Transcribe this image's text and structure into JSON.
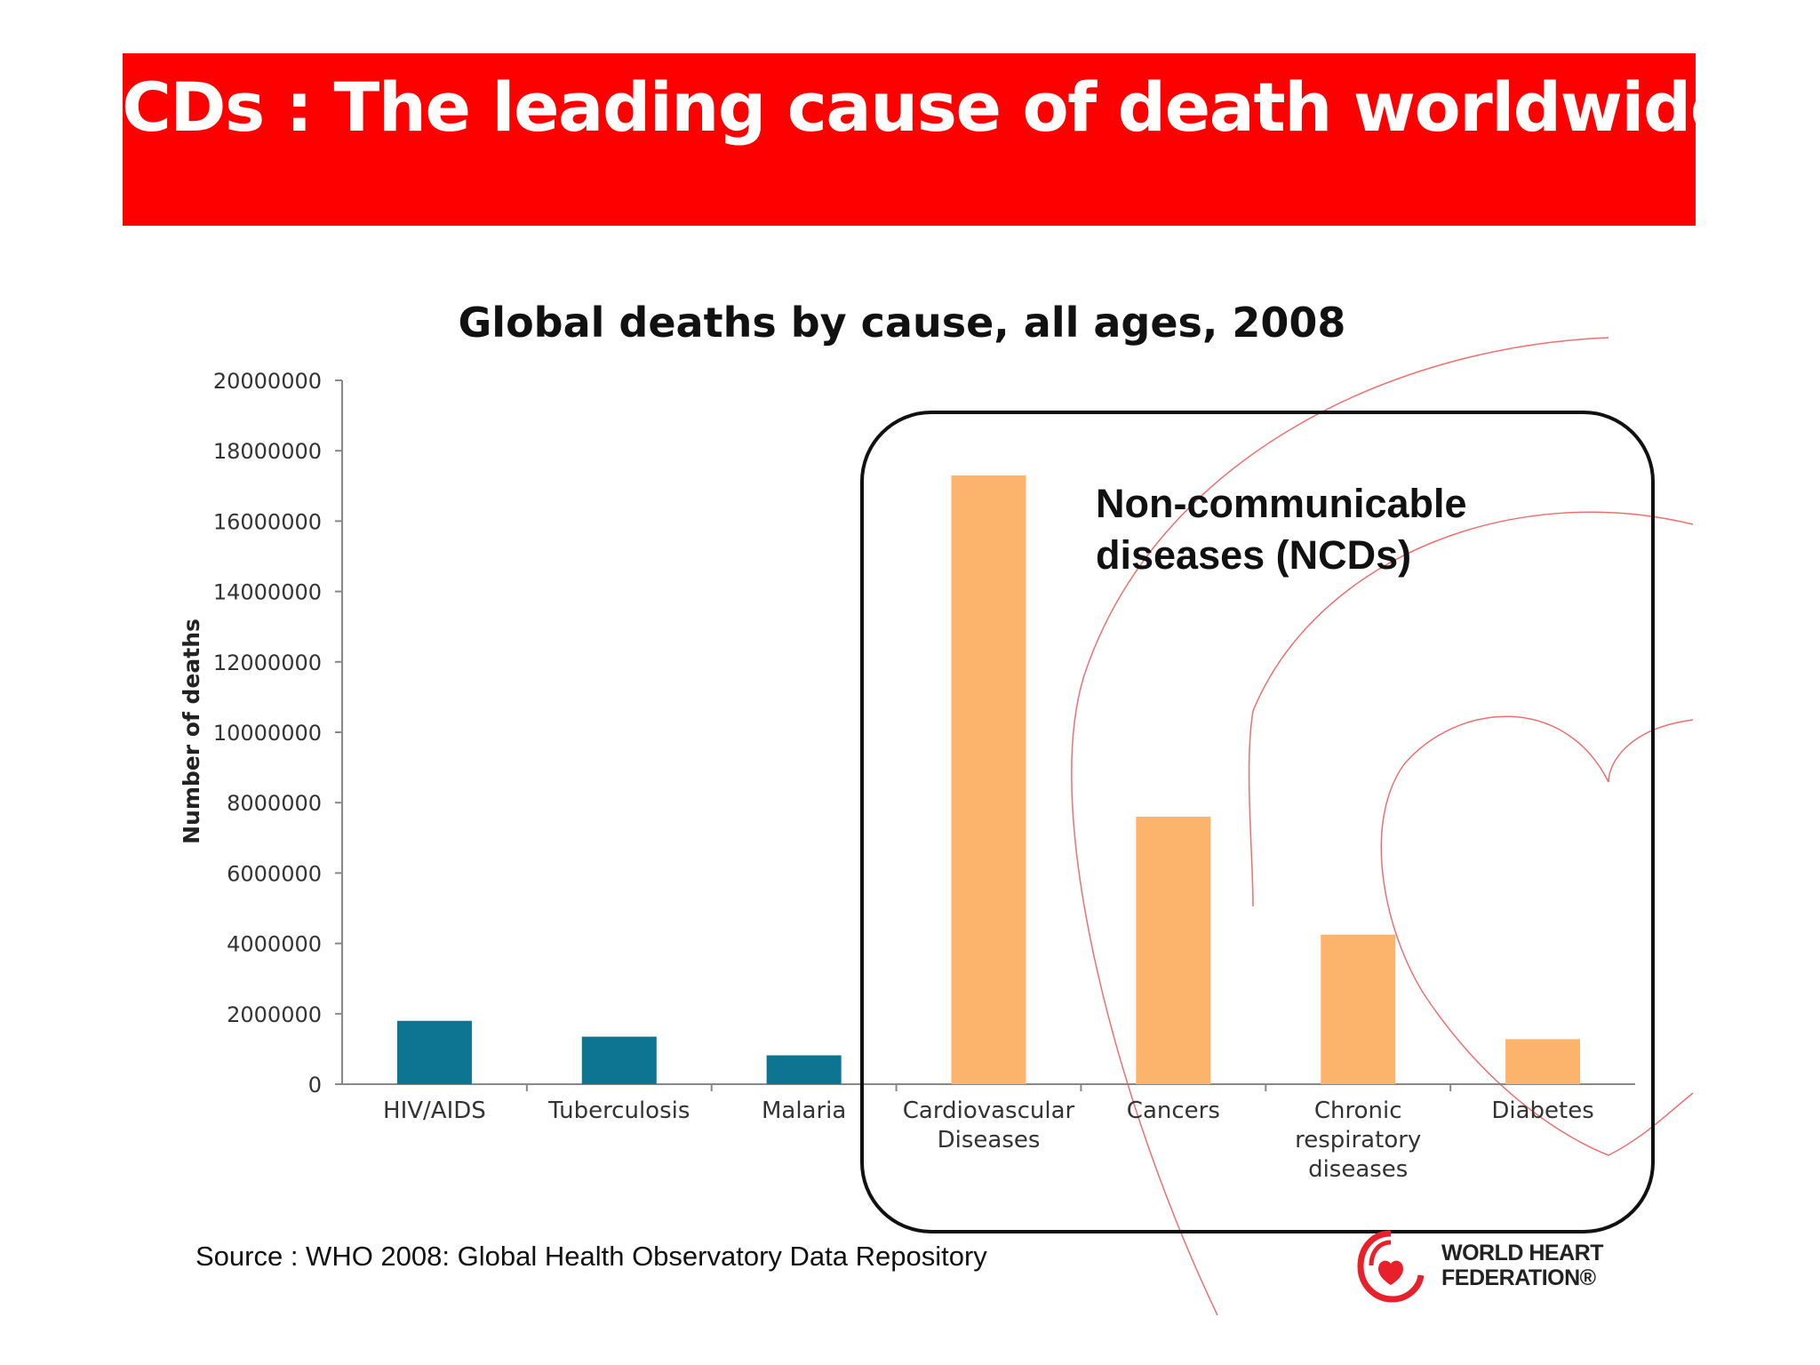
{
  "header": {
    "title": "NCDs : The leading cause of death worldwide"
  },
  "colors": {
    "banner": "#ff0000",
    "communicable": "#0d7592",
    "ncd": "#fcb46c",
    "accent_line": "#e84040"
  },
  "chart_data": {
    "type": "bar",
    "title": "Global deaths by cause, all ages, 2008",
    "xlabel": "",
    "ylabel": "Number of deaths",
    "ylim": [
      0,
      20000000
    ],
    "yticks": [
      "0",
      "2000000",
      "4000000",
      "6000000",
      "8000000",
      "10000000",
      "12000000",
      "14000000",
      "16000000",
      "18000000",
      "20000000"
    ],
    "categories": [
      [
        "HIV/AIDS"
      ],
      [
        "Tuberculosis"
      ],
      [
        "Malaria"
      ],
      [
        "Cardiovascular",
        "Diseases"
      ],
      [
        "Cancers"
      ],
      [
        "Chronic",
        "respiratory",
        "diseases"
      ],
      [
        "Diabetes"
      ]
    ],
    "values": [
      1800000,
      1350000,
      820000,
      17300000,
      7600000,
      4250000,
      1280000
    ],
    "groups": [
      "communicable",
      "communicable",
      "communicable",
      "ncd",
      "ncd",
      "ncd",
      "ncd"
    ],
    "annotation": {
      "lines": [
        "Non-communicable",
        "diseases (NCDs)"
      ]
    }
  },
  "footer": {
    "source": "Source : WHO 2008: Global Health Observatory Data Repository",
    "logo_lines": [
      "WORLD HEART",
      "FEDERATION®"
    ]
  }
}
